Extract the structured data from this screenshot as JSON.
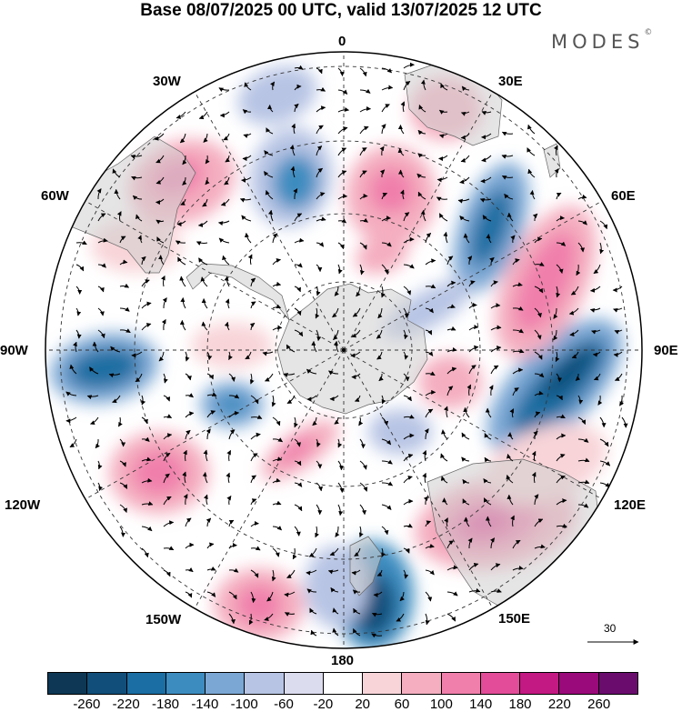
{
  "header": {
    "title": "Base 08/07/2025 00 UTC, valid 13/07/2025 12 UTC",
    "brand": "MODES",
    "brand_mark": "©"
  },
  "map": {
    "projection": "south polar stereographic",
    "longitude_labels": [
      "0",
      "30E",
      "60E",
      "90E",
      "120E",
      "150E",
      "180",
      "150W",
      "120W",
      "90W",
      "60W",
      "30W"
    ],
    "vector_key_value": "30"
  },
  "colorbar": {
    "colors": [
      "#0d3754",
      "#114e79",
      "#1a6ea3",
      "#3d8cc0",
      "#7ba7d4",
      "#b7c4e4",
      "#dcdcef",
      "#ffffff",
      "#f8d4d8",
      "#f4aec0",
      "#f07fab",
      "#e24c98",
      "#c31982",
      "#9a0a7a",
      "#6a0c6e"
    ],
    "tick_labels": [
      "-260",
      "-220",
      "-180",
      "-140",
      "-100",
      "-60",
      "-20",
      "20",
      "60",
      "100",
      "140",
      "180",
      "220",
      "260"
    ]
  }
}
